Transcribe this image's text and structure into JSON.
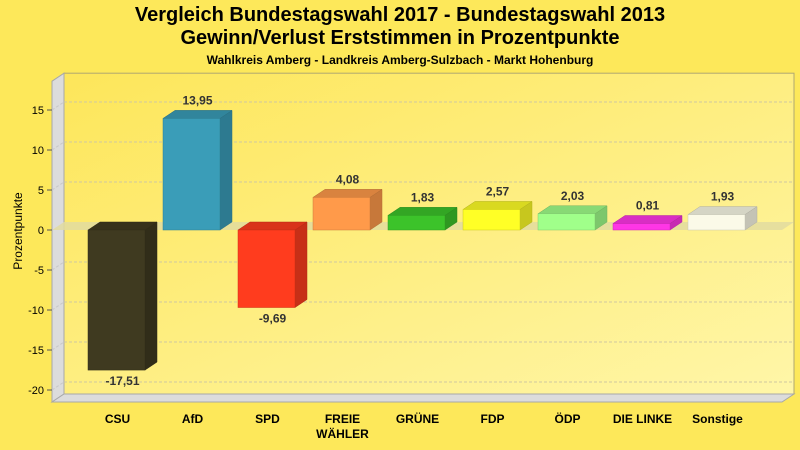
{
  "chart_data": {
    "type": "bar",
    "title": "Vergleich Bundestagswahl 2017 - Bundestagswahl 2013",
    "title2": "Gewinn/Verlust Erststimmen in Prozentpunkte",
    "subtitle": "Wahlkreis Amberg - Landkreis Amberg-Sulzbach - Markt Hohenburg",
    "xlabel": "",
    "ylabel": "Prozentpunkte",
    "ylim": [
      -21.5,
      18.6
    ],
    "yticks": [
      15,
      10,
      5,
      0,
      -5,
      -10,
      -15,
      -20
    ],
    "grid": true,
    "categories": [
      [
        "CSU"
      ],
      [
        "AfD"
      ],
      [
        "SPD"
      ],
      [
        "FREIE",
        "WÄHLER"
      ],
      [
        "GRÜNE"
      ],
      [
        "FDP"
      ],
      [
        "ÖDP"
      ],
      [
        "DIE LINKE"
      ],
      [
        "Sonstige"
      ]
    ],
    "values": [
      -17.51,
      13.95,
      -9.69,
      4.08,
      1.83,
      2.57,
      2.03,
      0.81,
      1.93
    ],
    "value_labels": [
      "-17,51",
      "13,95",
      "-9,69",
      "4,08",
      "1,83",
      "2,57",
      "2,03",
      "0,81",
      "1,93"
    ],
    "colors": [
      "#3f3a20",
      "#3a9db8",
      "#ff3c1e",
      "#ff9a4a",
      "#3cc32a",
      "#ffff26",
      "#a0ff8a",
      "#ff36e6",
      "#fbfae8"
    ]
  }
}
